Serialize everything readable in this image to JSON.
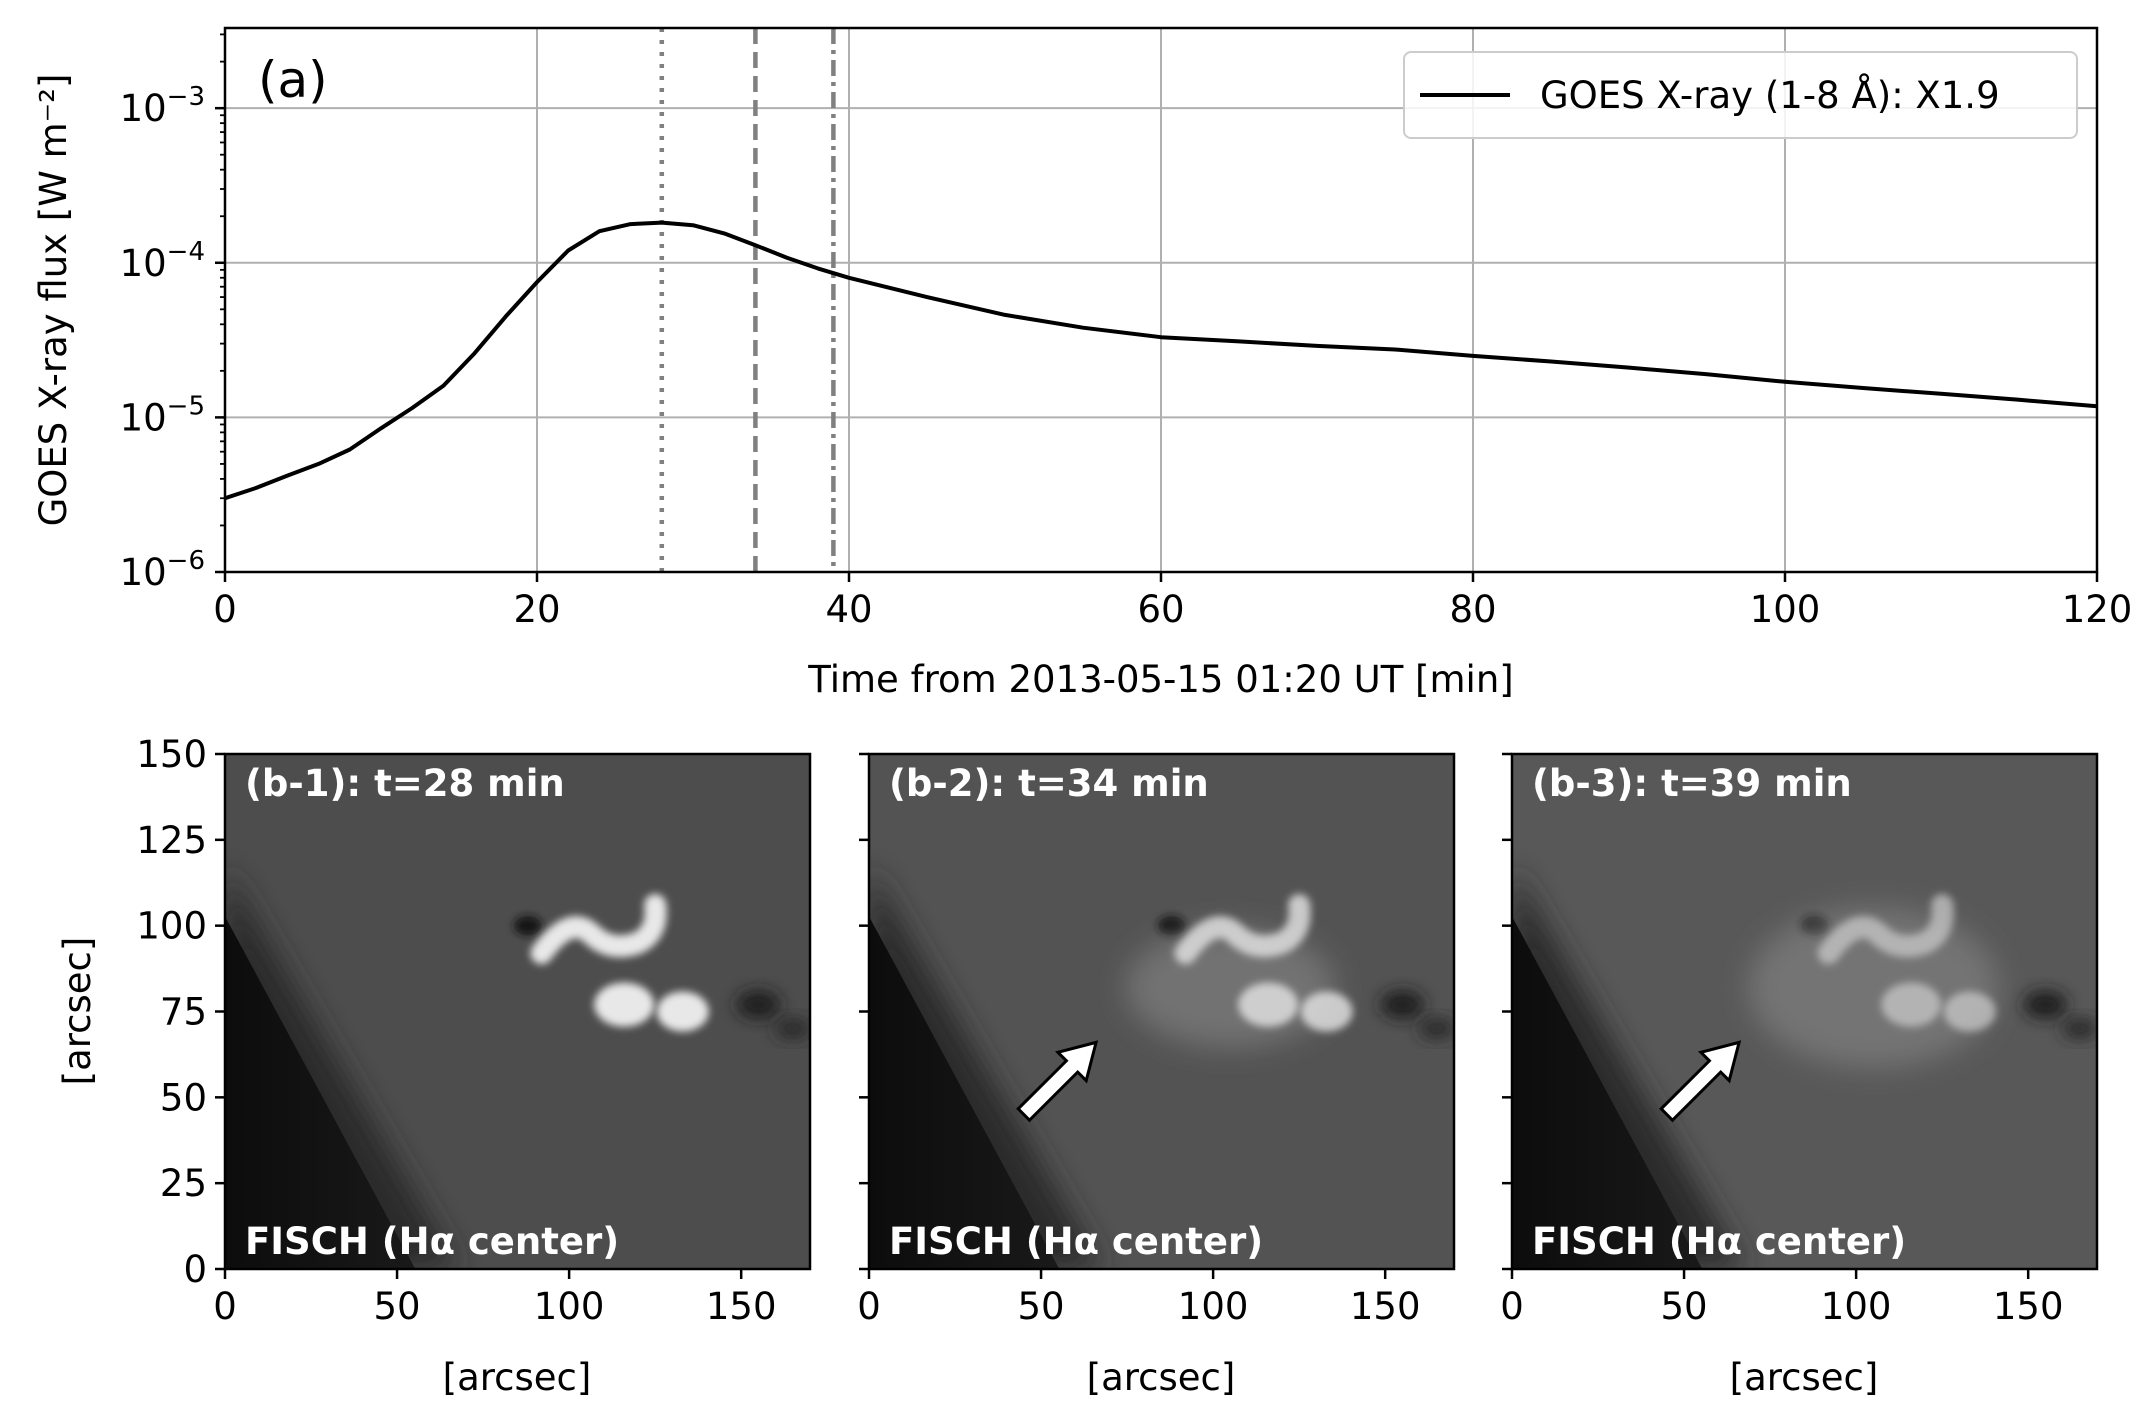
{
  "chart_data": [
    {
      "type": "line",
      "panel_label": "(a)",
      "title": "",
      "xlabel": "Time from 2013-05-15 01:20 UT [min]",
      "ylabel": "GOES X-ray flux [W m⁻²]",
      "xlim": [
        0,
        120
      ],
      "ylim": [
        1e-06,
        0.0033
      ],
      "yscale": "log",
      "grid": true,
      "legend_position": "top-right",
      "xticks": [
        0,
        20,
        40,
        60,
        80,
        100,
        120
      ],
      "ytick_labels": [
        {
          "value": 1e-06,
          "base": "10",
          "exp": "−6"
        },
        {
          "value": 1e-05,
          "base": "10",
          "exp": "−5"
        },
        {
          "value": 0.0001,
          "base": "10",
          "exp": "−4"
        },
        {
          "value": 0.001,
          "base": "10",
          "exp": "−3"
        }
      ],
      "series": [
        {
          "name": "GOES X-ray (1-8 Å): X1.9",
          "color": "#000000",
          "x": [
            0,
            2,
            4,
            6,
            8,
            10,
            12,
            14,
            16,
            18,
            20,
            22,
            24,
            26,
            28,
            30,
            32,
            34,
            36,
            38,
            40,
            45,
            50,
            55,
            60,
            65,
            70,
            75,
            80,
            85,
            90,
            95,
            100,
            105,
            110,
            115,
            120
          ],
          "y": [
            3e-06,
            3.5e-06,
            4.2e-06,
            5e-06,
            6.2e-06,
            8.5e-06,
            1.15e-05,
            1.6e-05,
            2.6e-05,
            4.5e-05,
            7.5e-05,
            0.00012,
            0.00016,
            0.000178,
            0.000182,
            0.000175,
            0.000155,
            0.00013,
            0.000108,
            9.2e-05,
            8e-05,
            6e-05,
            4.6e-05,
            3.8e-05,
            3.3e-05,
            3.1e-05,
            2.9e-05,
            2.75e-05,
            2.5e-05,
            2.3e-05,
            2.1e-05,
            1.9e-05,
            1.7e-05,
            1.55e-05,
            1.42e-05,
            1.3e-05,
            1.18e-05
          ]
        }
      ],
      "vlines": [
        {
          "x": 28,
          "style": "dotted",
          "color": "#808080"
        },
        {
          "x": 34,
          "style": "dashed",
          "color": "#808080"
        },
        {
          "x": 39,
          "style": "dashdot",
          "color": "#808080"
        }
      ]
    },
    {
      "type": "image",
      "panel_label": "(b-1): t=28 min",
      "caption": "FISCH (Hα center)",
      "xlabel": "[arcsec]",
      "ylabel": "[arcsec]",
      "xlim": [
        0,
        170
      ],
      "ylim": [
        0,
        150
      ],
      "xticks": [
        0,
        50,
        100,
        150
      ],
      "yticks": [
        0,
        25,
        50,
        75,
        100,
        125,
        150
      ]
    },
    {
      "type": "image",
      "panel_label": "(b-2): t=34 min",
      "caption": "FISCH (Hα center)",
      "xlabel": "[arcsec]",
      "xlim": [
        0,
        170
      ],
      "ylim": [
        0,
        150
      ],
      "xticks": [
        0,
        50,
        100,
        150
      ],
      "arrow": {
        "tail": [
          45,
          45
        ],
        "head": [
          66,
          66
        ]
      }
    },
    {
      "type": "image",
      "panel_label": "(b-3): t=39 min",
      "caption": "FISCH (Hα center)",
      "xlabel": "[arcsec]",
      "xlim": [
        0,
        170
      ],
      "ylim": [
        0,
        150
      ],
      "xticks": [
        0,
        50,
        100,
        150
      ],
      "arrow": {
        "tail": [
          45,
          45
        ],
        "head": [
          66,
          66
        ]
      }
    }
  ]
}
